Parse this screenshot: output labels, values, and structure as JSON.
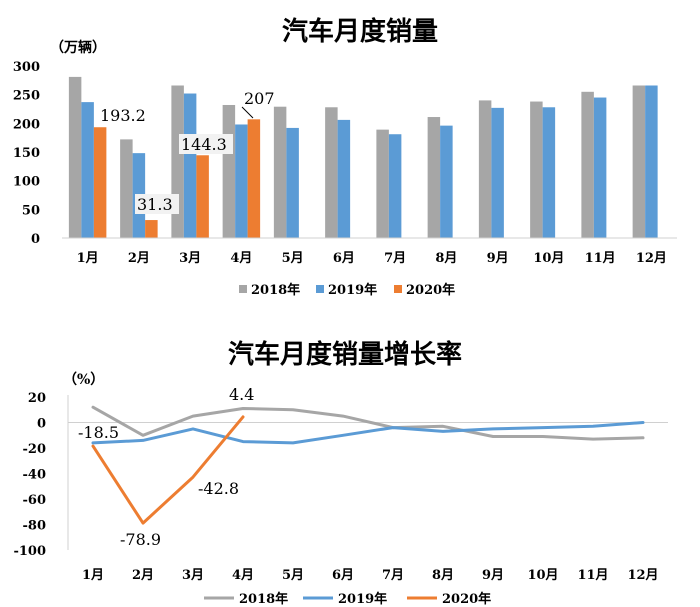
{
  "chart_data": [
    {
      "type": "bar",
      "title": "汽车月度销量",
      "unit": "（万辆）",
      "categories": [
        "1月",
        "2月",
        "3月",
        "4月",
        "5月",
        "6月",
        "7月",
        "8月",
        "9月",
        "10月",
        "11月",
        "12月"
      ],
      "ylim": [
        0,
        300
      ],
      "yticks": [
        "0",
        "50",
        "100",
        "150",
        "200",
        "250",
        "300"
      ],
      "grid": false,
      "legend": "bottom",
      "series": [
        {
          "name": "2018年",
          "color": "#a6a6a6",
          "values": [
            281,
            172,
            266,
            232,
            229,
            228,
            189,
            211,
            240,
            238,
            255,
            266
          ]
        },
        {
          "name": "2019年",
          "color": "#5b9bd5",
          "values": [
            237,
            148,
            252,
            198,
            192,
            206,
            181,
            196,
            227,
            228,
            245,
            266
          ]
        },
        {
          "name": "2020年",
          "color": "#ed7d31",
          "values": [
            193.2,
            31.3,
            144.3,
            207,
            null,
            null,
            null,
            null,
            null,
            null,
            null,
            null
          ]
        }
      ],
      "data_labels": [
        "193.2",
        "31.3",
        "144.3",
        "207"
      ]
    },
    {
      "type": "line",
      "title": "汽车月度销量增长率",
      "unit": "（%）",
      "categories": [
        "1月",
        "2月",
        "3月",
        "4月",
        "5月",
        "6月",
        "7月",
        "8月",
        "9月",
        "10月",
        "11月",
        "12月"
      ],
      "ylim": [
        -100,
        20
      ],
      "yticks": [
        "20",
        "0",
        "-20",
        "-40",
        "-60",
        "-80",
        "-100"
      ],
      "grid": false,
      "legend": "bottom",
      "series": [
        {
          "name": "2018年",
          "color": "#a6a6a6",
          "values": [
            12,
            -10,
            5,
            11,
            10,
            5,
            -4,
            -3,
            -11,
            -11,
            -13,
            -12
          ]
        },
        {
          "name": "2019年",
          "color": "#5b9bd5",
          "values": [
            -16,
            -14,
            -5,
            -15,
            -16,
            -10,
            -4,
            -7,
            -5,
            -4,
            -3,
            0
          ]
        },
        {
          "name": "2020年",
          "color": "#ed7d31",
          "values": [
            -18.5,
            -78.9,
            -42.8,
            4.4,
            null,
            null,
            null,
            null,
            null,
            null,
            null,
            null
          ]
        }
      ],
      "data_labels": [
        "-18.5",
        "-78.9",
        "-42.8",
        "4.4"
      ]
    }
  ]
}
